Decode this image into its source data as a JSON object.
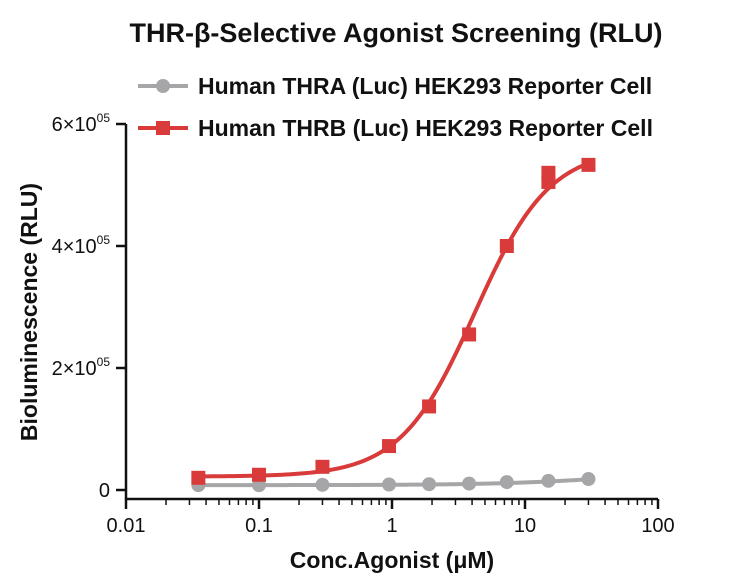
{
  "chart_data": {
    "type": "line",
    "title": "THR-β-Selective Agonist Screening (RLU)",
    "xlabel": "Conc.Agonist (μM)",
    "ylabel": "Bioluminescence (RLU)",
    "x_scale": "log",
    "xlim": [
      0.01,
      100
    ],
    "ylim": [
      0,
      600000
    ],
    "x_ticks": [
      {
        "value": 0.01,
        "label": "0.01"
      },
      {
        "value": 0.1,
        "label": "0.1"
      },
      {
        "value": 1,
        "label": "1"
      },
      {
        "value": 10,
        "label": "10"
      },
      {
        "value": 100,
        "label": "100"
      }
    ],
    "y_ticks": [
      {
        "value": 0,
        "label": "0",
        "mantissa": "",
        "exponent": ""
      },
      {
        "value": 200000,
        "label": "2×10^05",
        "mantissa": "2×10",
        "exponent": "05"
      },
      {
        "value": 400000,
        "label": "4×10^05",
        "mantissa": "4×10",
        "exponent": "05"
      },
      {
        "value": 600000,
        "label": "6×10^05",
        "mantissa": "6×10",
        "exponent": "05"
      }
    ],
    "grid": false,
    "legend_position": "top",
    "series": [
      {
        "name": "Human THRA (Luc) HEK293 Reporter Cell",
        "color": "#a6a6a8",
        "marker": "circle",
        "x": [
          0.035,
          0.1,
          0.3,
          0.95,
          1.9,
          3.8,
          7.3,
          15,
          30
        ],
        "y": [
          8000,
          8000,
          8500,
          9000,
          9500,
          10500,
          13000,
          15000,
          18000
        ],
        "fit": {
          "bottom": 8000,
          "top": 30000,
          "ec50": 40,
          "hill": 1.0
        }
      },
      {
        "name": "Human THRB (Luc) HEK293 Reporter Cell",
        "color": "#d93a3a",
        "marker": "square",
        "x": [
          0.035,
          0.1,
          0.3,
          0.95,
          1.9,
          3.8,
          7.3,
          15,
          15,
          30
        ],
        "y": [
          20000,
          25000,
          38000,
          72000,
          137000,
          255000,
          400000,
          505000,
          520000,
          533000
        ],
        "fit": {
          "bottom": 22000,
          "top": 560000,
          "ec50": 4.2,
          "hill": 1.55
        }
      }
    ]
  }
}
